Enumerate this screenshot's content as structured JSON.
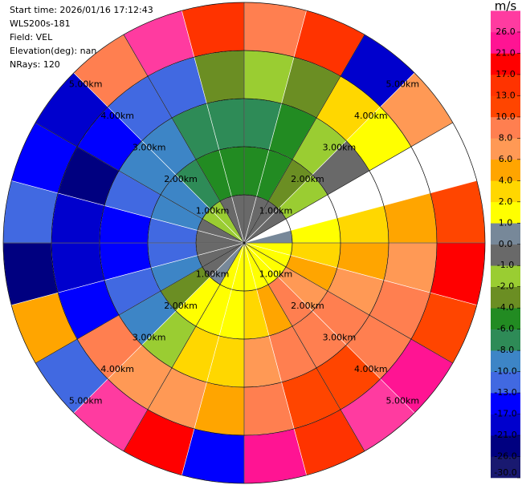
{
  "chart_data": {
    "type": "ppi",
    "text_lines": [
      "Start time: 2026/01/16 17:12:43",
      "WLS200s-181",
      "Field: VEL",
      "Elevation(deg): nan",
      "NRays: 120"
    ],
    "azimuths": [
      0,
      15,
      30,
      45,
      60,
      75,
      90,
      105,
      120,
      135,
      150,
      165,
      180,
      195,
      210,
      225,
      240,
      255,
      270,
      285,
      300,
      315,
      330,
      345
    ],
    "ranges": [
      0,
      1,
      2,
      3,
      4,
      5
    ],
    "values": [
      [
        -0.5,
        -5,
        -7,
        -1.5,
        9
      ],
      [
        -0.5,
        -5,
        -5,
        -3,
        15
      ],
      [
        -0.5,
        -3,
        -1.5,
        3,
        -19
      ],
      [
        -0.5,
        -1.5,
        -0.5,
        1.5,
        7
      ],
      [
        null,
        null,
        null,
        null,
        null
      ],
      [
        0.5,
        1.5,
        3,
        5,
        11.5
      ],
      [
        1.5,
        3,
        5,
        7,
        19
      ],
      [
        1.5,
        5,
        7,
        9,
        11.5
      ],
      [
        1.5,
        7,
        9,
        9,
        23
      ],
      [
        1.5,
        9,
        9,
        11.5,
        28
      ],
      [
        1.5,
        5,
        9,
        11.5,
        15
      ],
      [
        1.5,
        3,
        7,
        9,
        23
      ],
      [
        1.5,
        1.5,
        3,
        5,
        -15
      ],
      [
        1.5,
        1.5,
        3,
        7,
        19
      ],
      [
        0.5,
        1.5,
        -1.5,
        7,
        28
      ],
      [
        -0.5,
        -3,
        -9,
        9,
        -11.5
      ],
      [
        -0.5,
        -9,
        -11.5,
        -15,
        5
      ],
      [
        -0.5,
        -11.5,
        -15,
        -19,
        -23
      ],
      [
        -0.5,
        -11.5,
        -15,
        -19,
        -11.5
      ],
      [
        -0.5,
        -9,
        -11.5,
        -23,
        -15
      ],
      [
        -1.5,
        -9,
        -9,
        -15,
        -19
      ],
      [
        -1.5,
        -7,
        -9,
        -11.5,
        9
      ],
      [
        -0.5,
        -5,
        -7,
        -11.5,
        28
      ],
      [
        -0.5,
        -5,
        -7,
        -3,
        15
      ]
    ],
    "rings": [
      {
        "value": 1,
        "label": "1.00km"
      },
      {
        "value": 2,
        "label": "2.00km"
      },
      {
        "value": 3,
        "label": "3.00km"
      },
      {
        "value": 4,
        "label": "4.00km"
      },
      {
        "value": 5,
        "label": "5.00km"
      }
    ],
    "colorbar": {
      "label": "m/s",
      "clim": [
        -30,
        30
      ],
      "ticks": [
        {
          "value": -30,
          "label": "-30.0"
        },
        {
          "value": -26,
          "label": "-26.0"
        },
        {
          "value": -21,
          "label": "-21.0"
        },
        {
          "value": -17,
          "label": "-17.0"
        },
        {
          "value": -13,
          "label": "-13.0"
        },
        {
          "value": -10,
          "label": "-10.0"
        },
        {
          "value": -8,
          "label": "-8.0"
        },
        {
          "value": -6,
          "label": "-6.0"
        },
        {
          "value": -4,
          "label": "-4.0"
        },
        {
          "value": -2,
          "label": "-2.0"
        },
        {
          "value": -1,
          "label": "-1.0"
        },
        {
          "value": 0,
          "label": "0.0"
        },
        {
          "value": 1,
          "label": "1.0"
        },
        {
          "value": 2,
          "label": "2.0"
        },
        {
          "value": 4,
          "label": "4.0"
        },
        {
          "value": 6,
          "label": "6.0"
        },
        {
          "value": 8,
          "label": "8.0"
        },
        {
          "value": 10,
          "label": "10.0"
        },
        {
          "value": 13,
          "label": "13.0"
        },
        {
          "value": 17,
          "label": "17.0"
        },
        {
          "value": 21,
          "label": "21.0"
        },
        {
          "value": 26,
          "label": "26.0"
        }
      ],
      "colors": [
        "#191970",
        "#000080",
        "#0000cd",
        "#0000ff",
        "#4169e1",
        "#3d85c6",
        "#2e8b57",
        "#228b22",
        "#6b8e23",
        "#9acd32",
        "#696969",
        "#778899",
        "#ffff00",
        "#ffd700",
        "#ffa500",
        "#ff9955",
        "#ff7f50",
        "#ff4500",
        "#ff3300",
        "#ff0000",
        "#ff1493",
        "#ff3ba0"
      ]
    }
  }
}
